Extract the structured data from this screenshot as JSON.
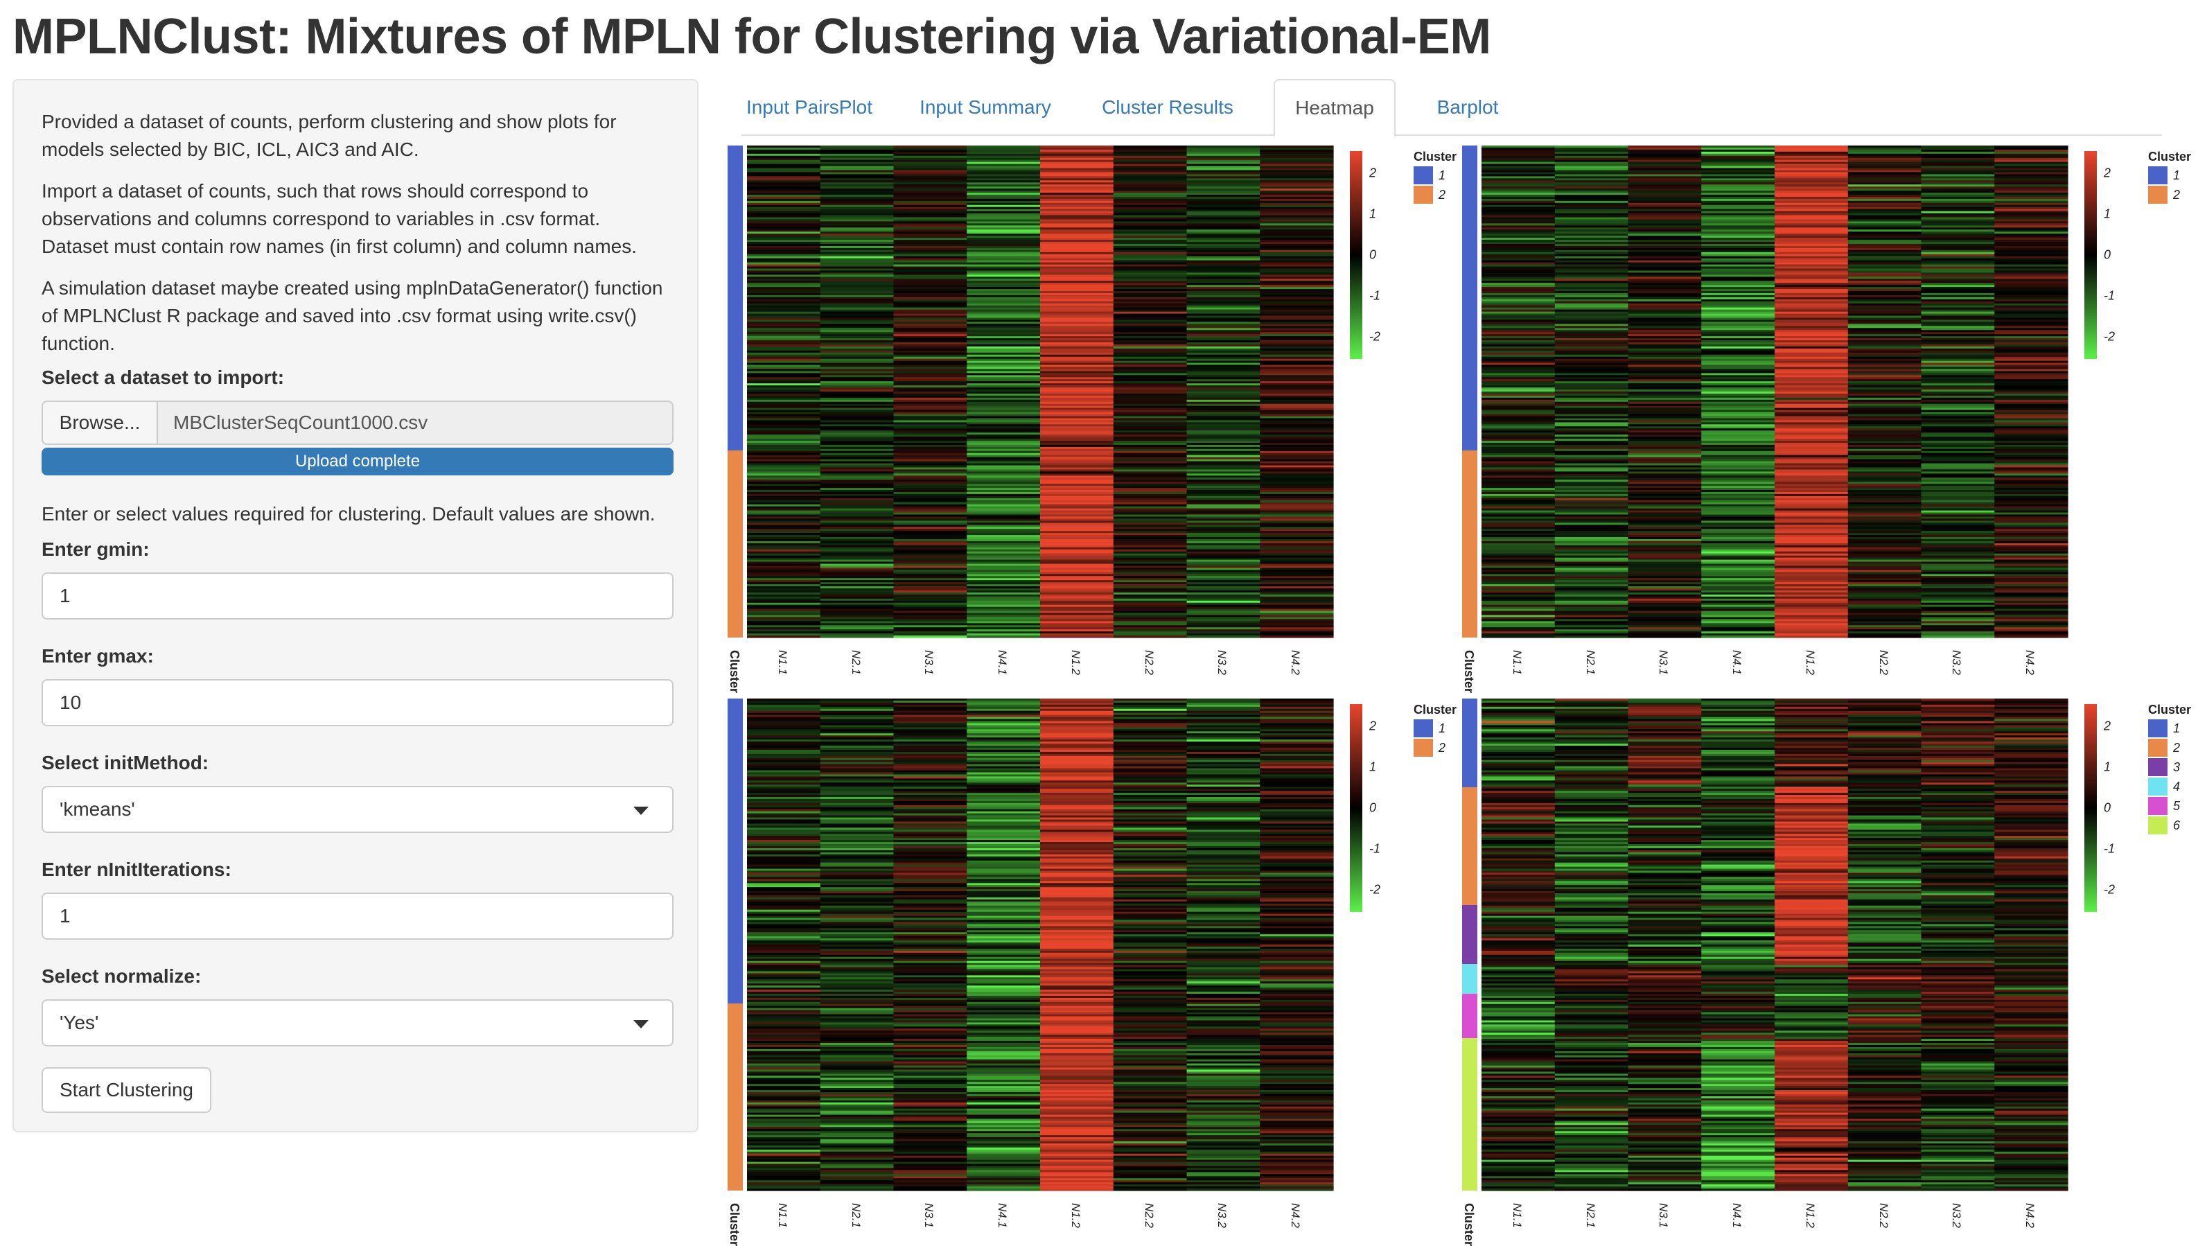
{
  "page_title": "MPLNClust: Mixtures of MPLN for Clustering via Variational-EM",
  "sidebar": {
    "intro": "Provided a dataset of counts, perform clustering and show plots for models selected by BIC, ICL, AIC3 and AIC.",
    "import_help": "Import a dataset of counts, such that rows should correspond to observations and columns correspond to variables in .csv format. Dataset must contain row names (in first column) and column names.",
    "simulation_help": "A simulation dataset maybe created using mplnDataGenerator() function of MPLNClust R package and saved into .csv format using write.csv() function.",
    "dataset_label": "Select a dataset to import:",
    "browse_label": "Browse...",
    "file_name": "MBClusterSeqCount1000.csv",
    "upload_status": "Upload complete",
    "values_help": "Enter or select values required for clustering. Default values are shown.",
    "gmin_label": "Enter gmin:",
    "gmin_value": "1",
    "gmax_label": "Enter gmax:",
    "gmax_value": "10",
    "init_method_label": "Select initMethod:",
    "init_method_value": "'kmeans'",
    "n_init_label": "Enter nInitIterations:",
    "n_init_value": "1",
    "normalize_label": "Select normalize:",
    "normalize_value": "'Yes'",
    "start_button": "Start Clustering"
  },
  "tabs": [
    {
      "label": "Input PairsPlot",
      "active": false
    },
    {
      "label": "Input Summary",
      "active": false
    },
    {
      "label": "Cluster Results",
      "active": false
    },
    {
      "label": "Heatmap",
      "active": true
    },
    {
      "label": "Barplot",
      "active": false
    }
  ],
  "chart_data": [
    {
      "type": "heatmap",
      "columns": [
        "N1.1",
        "N2.1",
        "N3.1",
        "N4.1",
        "N1.2",
        "N2.2",
        "N3.2",
        "N4.2"
      ],
      "annotation_label": "Cluster",
      "legend_title": "Cluster",
      "clusters": [
        "1",
        "2"
      ],
      "cluster_row_fractions": [
        0.62,
        0.38
      ],
      "column_means": [
        -0.2,
        -0.4,
        0.1,
        -0.9,
        1.7,
        0.0,
        -0.4,
        0.2
      ],
      "color_scale": {
        "ticks": [
          2,
          1,
          0,
          -1,
          -2
        ],
        "colors": [
          "#e8452c",
          "#000000",
          "#5df04a"
        ]
      }
    },
    {
      "type": "heatmap",
      "columns": [
        "N1.1",
        "N2.1",
        "N3.1",
        "N4.1",
        "N1.2",
        "N2.2",
        "N3.2",
        "N4.2"
      ],
      "annotation_label": "Cluster",
      "legend_title": "Cluster",
      "clusters": [
        "1",
        "2"
      ],
      "cluster_row_fractions": [
        0.62,
        0.38
      ],
      "column_means": [
        -0.2,
        -0.4,
        0.1,
        -0.9,
        1.7,
        0.0,
        -0.4,
        0.2
      ],
      "color_scale": {
        "ticks": [
          2,
          1,
          0,
          -1,
          -2
        ],
        "colors": [
          "#e8452c",
          "#000000",
          "#5df04a"
        ]
      }
    },
    {
      "type": "heatmap",
      "columns": [
        "N1.1",
        "N2.1",
        "N3.1",
        "N4.1",
        "N1.2",
        "N2.2",
        "N3.2",
        "N4.2"
      ],
      "annotation_label": "Cluster",
      "legend_title": "Cluster",
      "clusters": [
        "1",
        "2"
      ],
      "cluster_row_fractions": [
        0.62,
        0.38
      ],
      "column_means": [
        -0.2,
        -0.4,
        0.1,
        -0.9,
        1.7,
        0.0,
        -0.4,
        0.2
      ],
      "color_scale": {
        "ticks": [
          2,
          1,
          0,
          -1,
          -2
        ],
        "colors": [
          "#e8452c",
          "#000000",
          "#5df04a"
        ]
      }
    },
    {
      "type": "heatmap",
      "columns": [
        "N1.1",
        "N2.1",
        "N3.1",
        "N4.1",
        "N1.2",
        "N2.2",
        "N3.2",
        "N4.2"
      ],
      "annotation_label": "Cluster",
      "legend_title": "Cluster",
      "clusters": [
        "1",
        "2",
        "3",
        "4",
        "5",
        "6"
      ],
      "cluster_row_fractions": [
        0.18,
        0.24,
        0.12,
        0.06,
        0.09,
        0.31
      ],
      "cluster_column_means": [
        [
          -0.6,
          -0.2,
          0.5,
          -0.6,
          0.4,
          0.2,
          0.6,
          0.3
        ],
        [
          0.4,
          -0.5,
          -0.2,
          -0.7,
          1.9,
          -0.5,
          -0.1,
          0.3
        ],
        [
          0.2,
          -0.6,
          -0.3,
          -0.5,
          1.9,
          -0.5,
          0.0,
          0.1
        ],
        [
          -0.5,
          0.5,
          0.6,
          -0.3,
          -0.5,
          0.6,
          0.5,
          0.2
        ],
        [
          -0.9,
          -0.2,
          0.1,
          0.2,
          -0.7,
          0.2,
          0.4,
          0.1
        ],
        [
          -0.1,
          -0.5,
          -0.2,
          -1.2,
          1.3,
          -0.1,
          -0.3,
          0.0
        ]
      ],
      "color_scale": {
        "ticks": [
          2,
          1,
          0,
          -1,
          -2
        ],
        "colors": [
          "#e8452c",
          "#000000",
          "#5df04a"
        ]
      }
    }
  ],
  "colors": {
    "cluster_1": "#4a63c9",
    "cluster_2": "#e8894a",
    "cluster_3": "#7a3fa6",
    "cluster_4": "#6fe3f0",
    "cluster_5": "#d94fd1",
    "cluster_6": "#c5ec52",
    "link": "#337ab7",
    "progress": "#337ab7"
  }
}
